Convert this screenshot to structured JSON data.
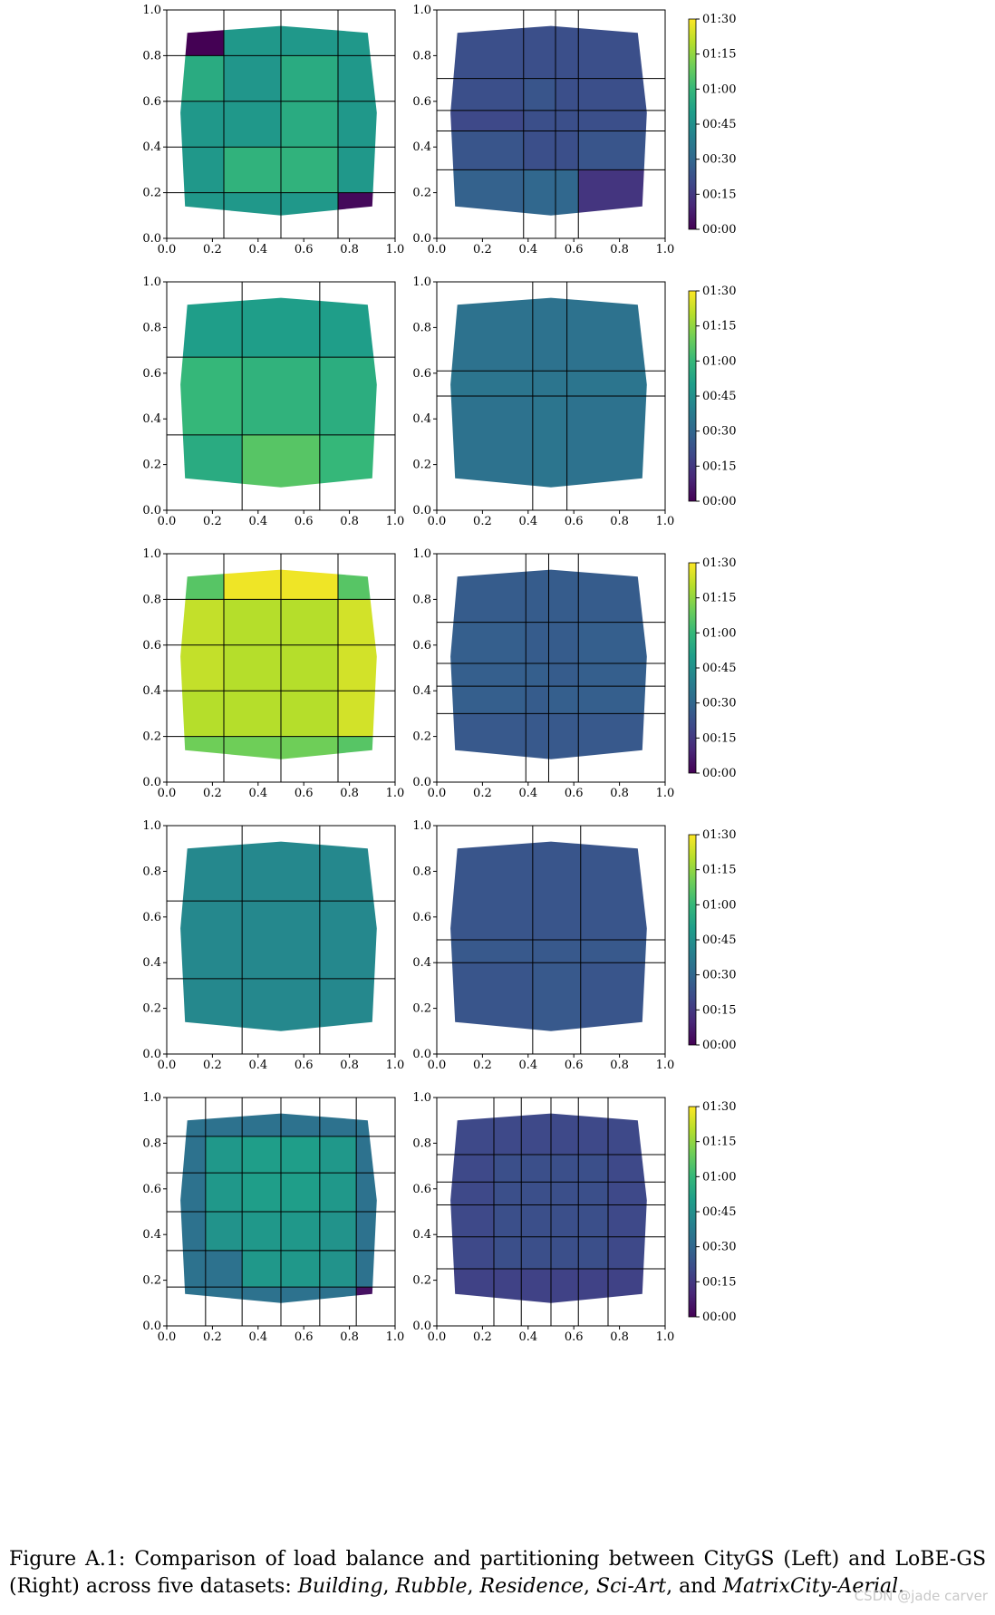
{
  "caption": {
    "label": "Figure A.1:",
    "text": "Comparison of load balance and partitioning between CityGS (Left) and LoBE-GS (Right) across five datasets:",
    "datasets": [
      "Building",
      "Rubble",
      "Residence",
      "Sci-Art",
      "MatrixCity-Aerial"
    ],
    "sep": ", ",
    "and_word": "and",
    "end": "."
  },
  "watermark": "CSDN @jade carver",
  "colormap": [
    "#440154",
    "#482878",
    "#3e4989",
    "#31688e",
    "#26828e",
    "#1f9e89",
    "#35b779",
    "#6ece58",
    "#b5de2b",
    "#fde725"
  ],
  "chart_data": [
    {
      "type": "heatmap",
      "name": "",
      "xlim": [
        0,
        1
      ],
      "ylim": [
        0,
        1
      ],
      "xticks": [
        "0.0",
        "0.2",
        "0.4",
        "0.6",
        "0.8",
        "1.0"
      ],
      "yticks": [
        "0.0",
        "0.2",
        "0.4",
        "0.6",
        "0.8",
        "1.0"
      ],
      "colorbar": {
        "ticks": [
          "00:00",
          "00:15",
          "00:30",
          "00:45",
          "01:00",
          "01:15",
          "01:30"
        ],
        "range_minutes": [
          0,
          90
        ]
      },
      "panels": [
        {
          "side": "left",
          "partition_x": [
            0.25,
            0.5,
            0.75
          ],
          "partition_y": [
            0.2,
            0.4,
            0.6,
            0.8
          ],
          "cells_minutes": [
            [
              0,
              48,
              48,
              48
            ],
            [
              55,
              47,
              55,
              48
            ],
            [
              48,
              48,
              55,
              48
            ],
            [
              48,
              58,
              58,
              48
            ],
            [
              48,
              48,
              48,
              2
            ]
          ]
        },
        {
          "side": "right",
          "partition_x": [
            0.38,
            0.52,
            0.62
          ],
          "partition_y": [
            0.3,
            0.47,
            0.56,
            0.7
          ],
          "cells_minutes": [
            [
              22,
              22,
              22,
              22
            ],
            [
              22,
              24,
              22,
              22
            ],
            [
              20,
              22,
              22,
              22
            ],
            [
              24,
              22,
              22,
              24
            ],
            [
              28,
              30,
              30,
              14
            ]
          ]
        }
      ]
    },
    {
      "type": "heatmap",
      "name": "",
      "xlim": [
        0,
        1
      ],
      "ylim": [
        0,
        1
      ],
      "xticks": [
        "0.0",
        "0.2",
        "0.4",
        "0.6",
        "0.8",
        "1.0"
      ],
      "yticks": [
        "0.0",
        "0.2",
        "0.4",
        "0.6",
        "0.8",
        "1.0"
      ],
      "colorbar": {
        "ticks": [
          "00:00",
          "00:15",
          "00:30",
          "00:45",
          "01:00",
          "01:15",
          "01:30"
        ],
        "range_minutes": [
          0,
          90
        ]
      },
      "panels": [
        {
          "side": "left",
          "partition_x": [
            0.33,
            0.67
          ],
          "partition_y": [
            0.33,
            0.67
          ],
          "cells_minutes": [
            [
              50,
              50,
              50
            ],
            [
              60,
              58,
              56
            ],
            [
              55,
              66,
              60
            ]
          ]
        },
        {
          "side": "right",
          "partition_x": [
            0.42,
            0.57
          ],
          "partition_y": [
            0.5,
            0.61
          ],
          "cells_minutes": [
            [
              34,
              34,
              34
            ],
            [
              35,
              35,
              35
            ],
            [
              34,
              35,
              34
            ]
          ]
        }
      ]
    },
    {
      "type": "heatmap",
      "name": "",
      "xlim": [
        0,
        1
      ],
      "ylim": [
        0,
        1
      ],
      "xticks": [
        "0.0",
        "0.2",
        "0.4",
        "0.6",
        "0.8",
        "1.0"
      ],
      "yticks": [
        "0.0",
        "0.2",
        "0.4",
        "0.6",
        "0.8",
        "1.0"
      ],
      "colorbar": {
        "ticks": [
          "00:00",
          "00:15",
          "00:30",
          "00:45",
          "01:00",
          "01:15",
          "01:30"
        ],
        "range_minutes": [
          0,
          90
        ]
      },
      "panels": [
        {
          "side": "left",
          "partition_x": [
            0.25,
            0.5,
            0.75
          ],
          "partition_y": [
            0.2,
            0.4,
            0.6,
            0.8
          ],
          "cells_minutes": [
            [
              66,
              88,
              88,
              66
            ],
            [
              82,
              80,
              80,
              84
            ],
            [
              82,
              80,
              80,
              84
            ],
            [
              80,
              80,
              80,
              84
            ],
            [
              70,
              70,
              70,
              66
            ]
          ]
        },
        {
          "side": "right",
          "partition_x": [
            0.39,
            0.49,
            0.62
          ],
          "partition_y": [
            0.3,
            0.42,
            0.52,
            0.7
          ],
          "cells_minutes": [
            [
              26,
              26,
              26,
              26
            ],
            [
              27,
              26,
              26,
              27
            ],
            [
              27,
              27,
              26,
              27
            ],
            [
              27,
              26,
              27,
              27
            ],
            [
              25,
              25,
              25,
              25
            ]
          ]
        }
      ]
    },
    {
      "type": "heatmap",
      "name": "",
      "xlim": [
        0,
        1
      ],
      "ylim": [
        0,
        1
      ],
      "xticks": [
        "0.0",
        "0.2",
        "0.4",
        "0.6",
        "0.8",
        "1.0"
      ],
      "yticks": [
        "0.0",
        "0.2",
        "0.4",
        "0.6",
        "0.8",
        "1.0"
      ],
      "colorbar": {
        "ticks": [
          "00:00",
          "00:15",
          "00:30",
          "00:45",
          "01:00",
          "01:15",
          "01:30"
        ],
        "range_minutes": [
          0,
          90
        ]
      },
      "panels": [
        {
          "side": "left",
          "partition_x": [
            0.33,
            0.67
          ],
          "partition_y": [
            0.33,
            0.67
          ],
          "cells_minutes": [
            [
              42,
              42,
              42
            ],
            [
              42,
              42,
              42
            ],
            [
              42,
              42,
              42
            ]
          ]
        },
        {
          "side": "right",
          "partition_x": [
            0.42,
            0.63
          ],
          "partition_y": [
            0.4,
            0.5
          ],
          "cells_minutes": [
            [
              24,
              24,
              24
            ],
            [
              25,
              25,
              25
            ],
            [
              24,
              25,
              24
            ]
          ]
        }
      ]
    },
    {
      "type": "heatmap",
      "name": "",
      "xlim": [
        0,
        1
      ],
      "ylim": [
        0,
        1
      ],
      "xticks": [
        "0.0",
        "0.2",
        "0.4",
        "0.6",
        "0.8",
        "1.0"
      ],
      "yticks": [
        "0.0",
        "0.2",
        "0.4",
        "0.6",
        "0.8",
        "1.0"
      ],
      "colorbar": {
        "ticks": [
          "00:00",
          "00:15",
          "00:30",
          "00:45",
          "01:00",
          "01:15",
          "01:30"
        ],
        "range_minutes": [
          0,
          90
        ]
      },
      "panels": [
        {
          "side": "left",
          "partition_x": [
            0.17,
            0.33,
            0.5,
            0.67,
            0.83
          ],
          "partition_y": [
            0.17,
            0.33,
            0.5,
            0.67,
            0.83
          ],
          "cells_minutes": [
            [
              34,
              34,
              34,
              34,
              34,
              34
            ],
            [
              34,
              48,
              50,
              50,
              48,
              34
            ],
            [
              34,
              48,
              50,
              50,
              48,
              34
            ],
            [
              34,
              46,
              48,
              48,
              46,
              34
            ],
            [
              34,
              34,
              48,
              48,
              46,
              34
            ],
            [
              34,
              34,
              34,
              34,
              34,
              4
            ]
          ]
        },
        {
          "side": "right",
          "partition_x": [
            0.25,
            0.37,
            0.5,
            0.62,
            0.75
          ],
          "partition_y": [
            0.25,
            0.39,
            0.53,
            0.63,
            0.75
          ],
          "cells_minutes": [
            [
              20,
              20,
              20,
              20,
              20,
              20
            ],
            [
              20,
              22,
              22,
              22,
              22,
              20
            ],
            [
              20,
              22,
              22,
              22,
              22,
              20
            ],
            [
              20,
              22,
              22,
              22,
              22,
              20
            ],
            [
              20,
              22,
              22,
              22,
              22,
              20
            ],
            [
              18,
              18,
              18,
              18,
              18,
              18
            ]
          ]
        }
      ]
    }
  ]
}
